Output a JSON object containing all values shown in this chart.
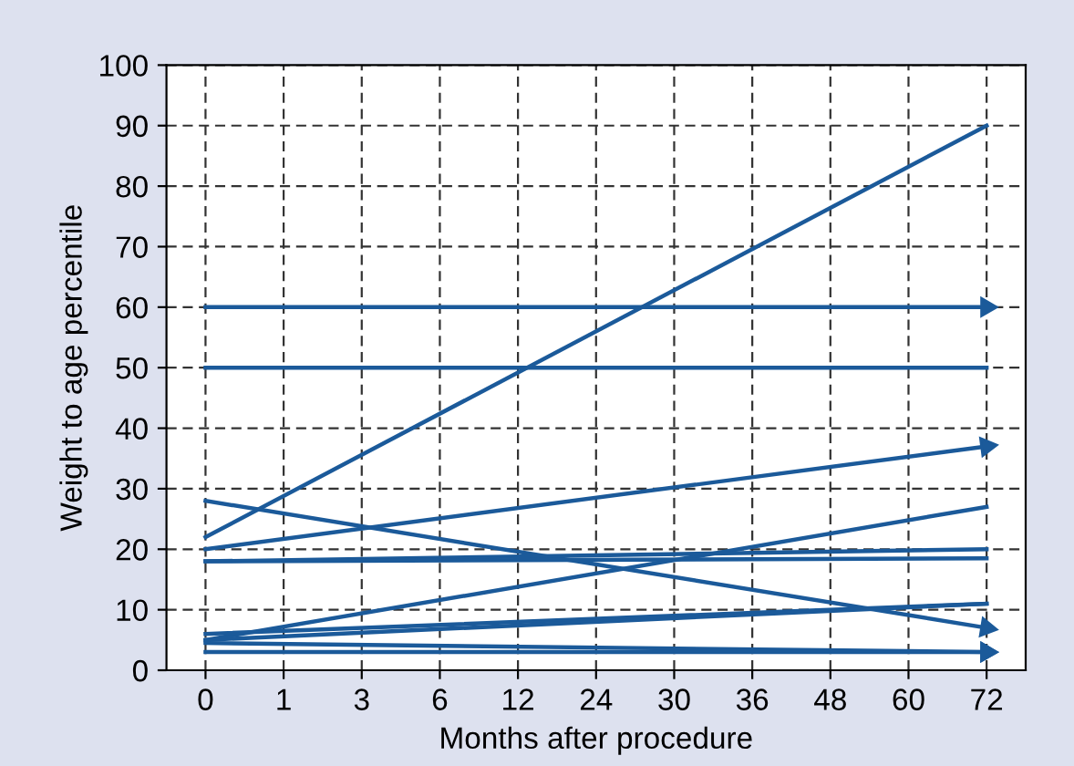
{
  "chart_data": {
    "type": "line",
    "xlabel": "Months after procedure",
    "ylabel": "Weight to age percentile",
    "categories": [
      "0",
      "1",
      "3",
      "6",
      "12",
      "24",
      "30",
      "36",
      "48",
      "60",
      "72"
    ],
    "ylim": [
      0,
      100
    ],
    "yticks": [
      0,
      10,
      20,
      30,
      40,
      50,
      60,
      70,
      80,
      90,
      100
    ],
    "grid": true,
    "line_style": "solid",
    "series": [
      {
        "color": "#1b5a9a",
        "marker": "none",
        "values": [
          22,
          null,
          null,
          null,
          null,
          null,
          null,
          null,
          null,
          null,
          90
        ]
      },
      {
        "color": "#1b5a9a",
        "marker": "triangle",
        "values": [
          60,
          null,
          null,
          null,
          null,
          null,
          null,
          null,
          null,
          null,
          60
        ]
      },
      {
        "color": "#1b5a9a",
        "marker": "none",
        "values": [
          50,
          null,
          null,
          null,
          null,
          null,
          null,
          null,
          null,
          null,
          50
        ]
      },
      {
        "color": "#1b5a9a",
        "marker": "triangle",
        "values": [
          20,
          null,
          null,
          null,
          null,
          null,
          null,
          null,
          null,
          null,
          37
        ]
      },
      {
        "color": "#1b5a9a",
        "marker": "triangle",
        "values": [
          28,
          null,
          null,
          null,
          null,
          null,
          null,
          null,
          null,
          null,
          7
        ]
      },
      {
        "color": "#1b5a9a",
        "marker": "none",
        "values": [
          5,
          null,
          null,
          null,
          null,
          null,
          null,
          null,
          null,
          null,
          27
        ]
      },
      {
        "color": "#1b5a9a",
        "marker": "none",
        "values": [
          18,
          null,
          null,
          null,
          null,
          null,
          null,
          null,
          null,
          null,
          20
        ]
      },
      {
        "color": "#1b5a9a",
        "marker": "none",
        "values": [
          18,
          null,
          null,
          null,
          null,
          null,
          null,
          null,
          null,
          null,
          18.5
        ]
      },
      {
        "color": "#1b5a9a",
        "marker": "none",
        "values": [
          6,
          null,
          null,
          null,
          null,
          null,
          null,
          null,
          null,
          null,
          11
        ]
      },
      {
        "color": "#1b5a9a",
        "marker": "none",
        "values": [
          5,
          null,
          null,
          null,
          null,
          null,
          null,
          null,
          null,
          null,
          11
        ]
      },
      {
        "color": "#1b5a9a",
        "marker": "triangle",
        "values": [
          4.5,
          null,
          null,
          null,
          null,
          null,
          null,
          null,
          null,
          null,
          3
        ]
      },
      {
        "color": "#1b5a9a",
        "marker": "triangle",
        "values": [
          3,
          null,
          null,
          null,
          null,
          null,
          null,
          null,
          null,
          null,
          3
        ]
      }
    ]
  }
}
